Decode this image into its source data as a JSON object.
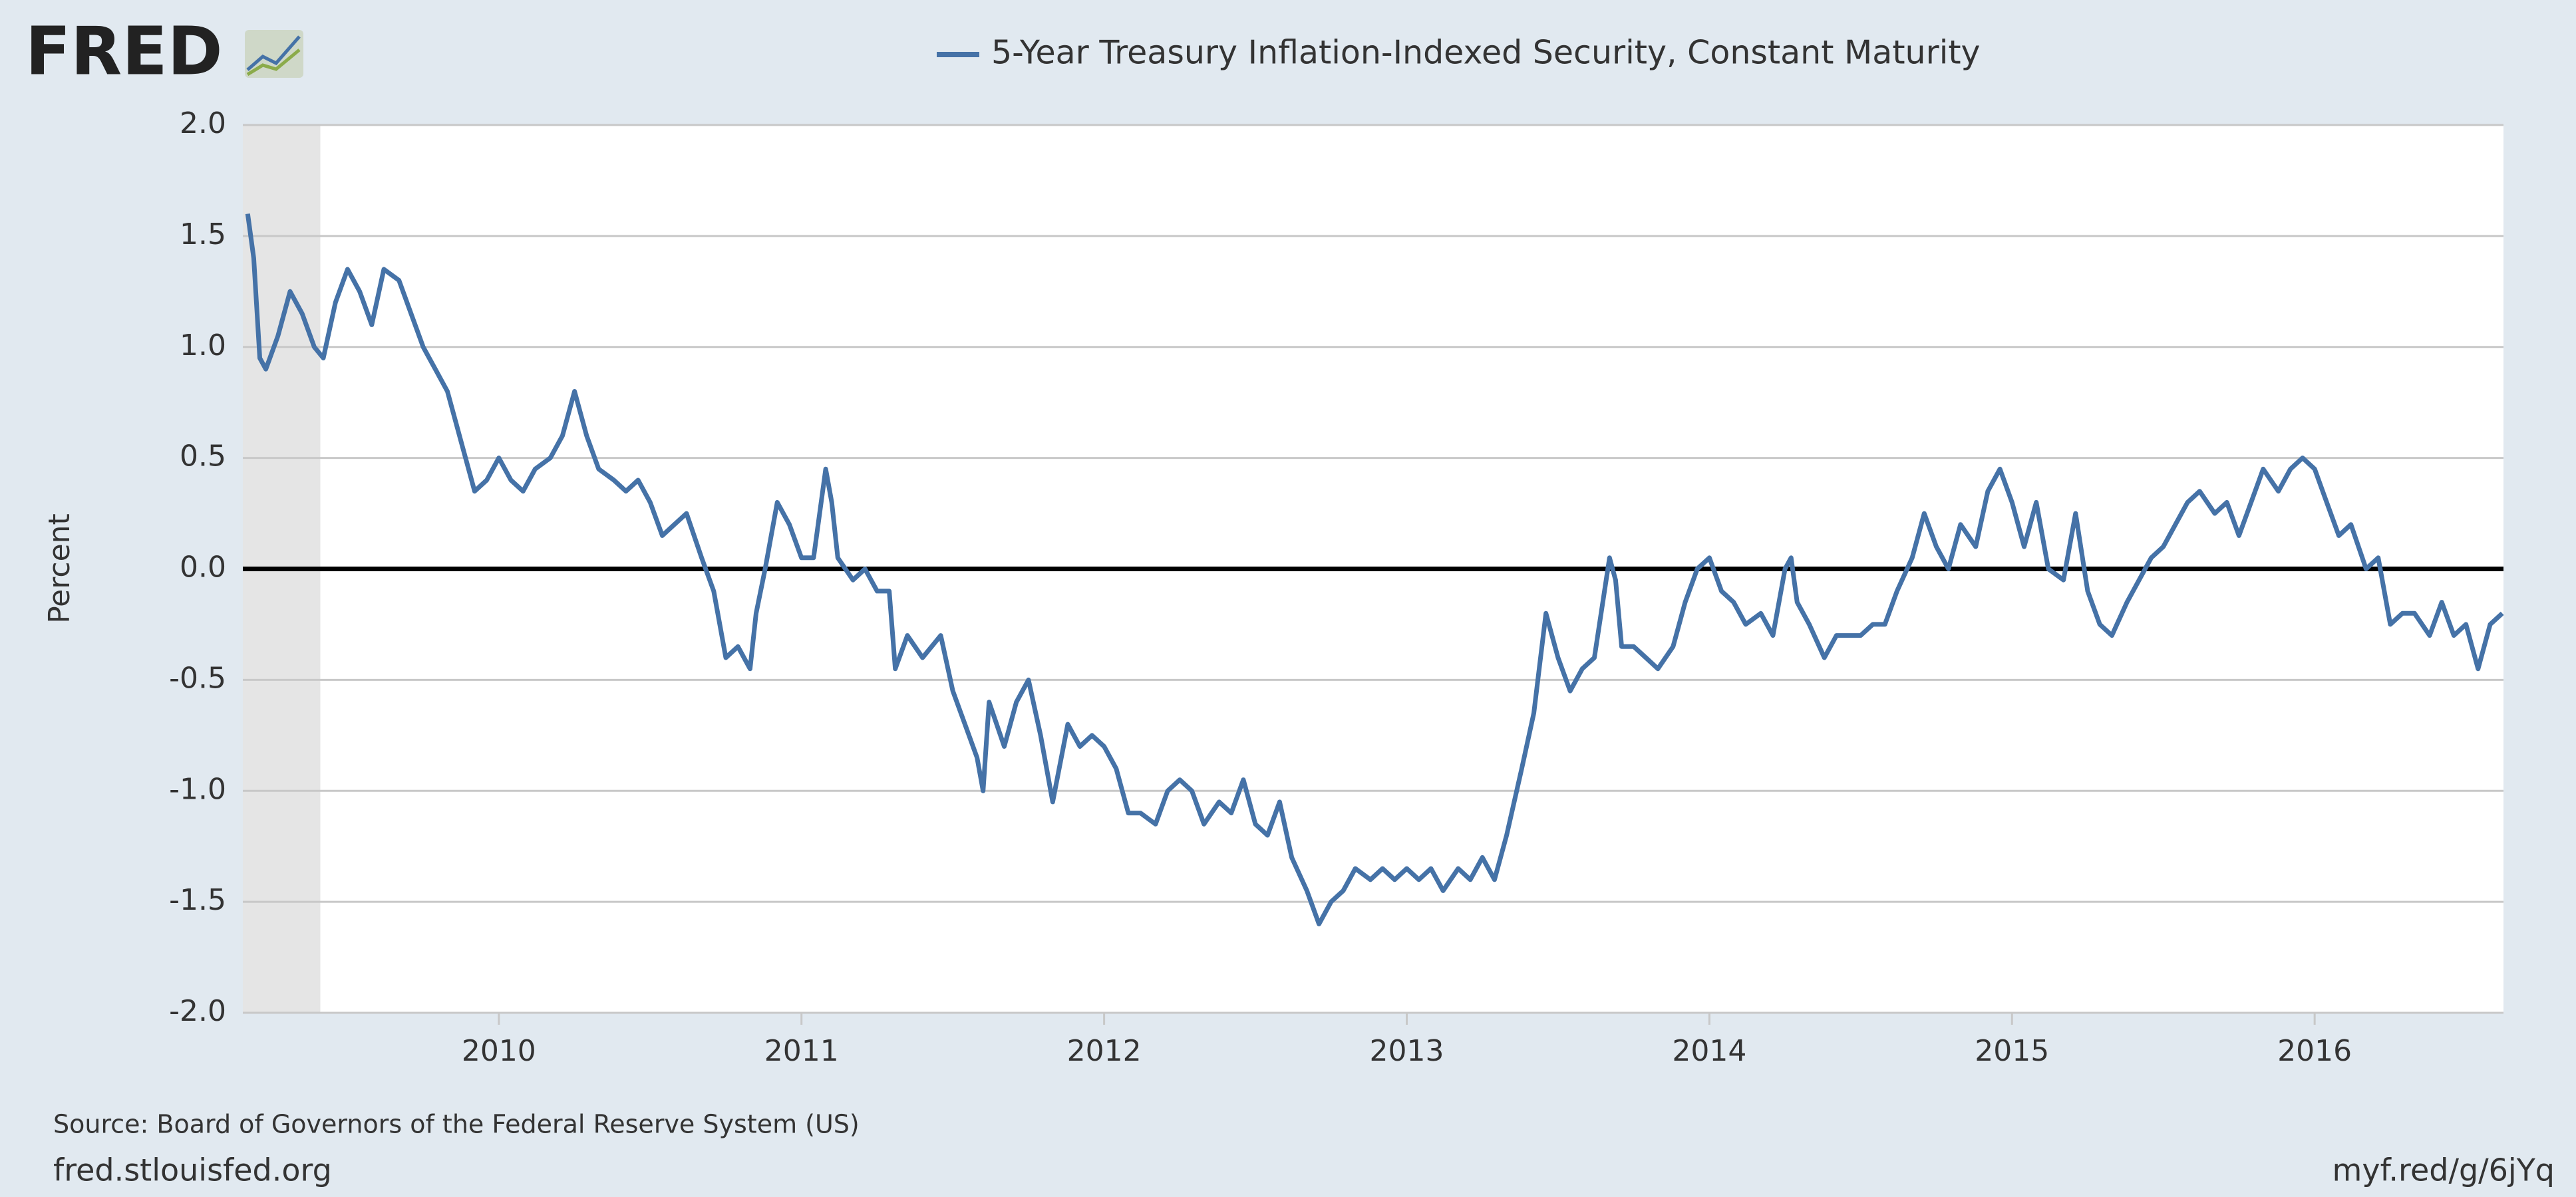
{
  "chart_data": {
    "type": "line",
    "logo": "FRED",
    "y_label": "Percent",
    "source": "Source: Board of Governors of the Federal Reserve System (US)",
    "site": "fred.stlouisfed.org",
    "short_url": "myf.red/g/6jYq",
    "x": [
      2009.17,
      2009.19,
      2009.21,
      2009.23,
      2009.27,
      2009.31,
      2009.35,
      2009.39,
      2009.42,
      2009.46,
      2009.5,
      2009.54,
      2009.58,
      2009.62,
      2009.67,
      2009.71,
      2009.75,
      2009.79,
      2009.83,
      2009.88,
      2009.92,
      2009.96,
      2010.0,
      2010.04,
      2010.08,
      2010.12,
      2010.17,
      2010.21,
      2010.25,
      2010.29,
      2010.33,
      2010.38,
      2010.42,
      2010.46,
      2010.5,
      2010.54,
      2010.58,
      2010.62,
      2010.67,
      2010.71,
      2010.75,
      2010.79,
      2010.83,
      2010.85,
      2010.88,
      2010.92,
      2010.96,
      2011.0,
      2011.04,
      2011.08,
      2011.1,
      2011.12,
      2011.17,
      2011.21,
      2011.25,
      2011.29,
      2011.31,
      2011.35,
      2011.4,
      2011.46,
      2011.5,
      2011.54,
      2011.58,
      2011.6,
      2011.62,
      2011.67,
      2011.71,
      2011.75,
      2011.79,
      2011.83,
      2011.88,
      2011.92,
      2011.96,
      2012.0,
      2012.04,
      2012.08,
      2012.12,
      2012.17,
      2012.21,
      2012.25,
      2012.29,
      2012.33,
      2012.38,
      2012.42,
      2012.46,
      2012.5,
      2012.54,
      2012.58,
      2012.62,
      2012.67,
      2012.71,
      2012.75,
      2012.79,
      2012.83,
      2012.88,
      2012.92,
      2012.96,
      2013.0,
      2013.04,
      2013.08,
      2013.12,
      2013.17,
      2013.21,
      2013.25,
      2013.29,
      2013.33,
      2013.38,
      2013.42,
      2013.46,
      2013.5,
      2013.54,
      2013.58,
      2013.62,
      2013.67,
      2013.69,
      2013.71,
      2013.75,
      2013.79,
      2013.83,
      2013.88,
      2013.92,
      2013.96,
      2014.0,
      2014.04,
      2014.08,
      2014.12,
      2014.17,
      2014.21,
      2014.25,
      2014.27,
      2014.29,
      2014.33,
      2014.38,
      2014.42,
      2014.46,
      2014.5,
      2014.54,
      2014.58,
      2014.62,
      2014.67,
      2014.71,
      2014.75,
      2014.79,
      2014.83,
      2014.88,
      2014.92,
      2014.96,
      2015.0,
      2015.04,
      2015.08,
      2015.12,
      2015.17,
      2015.21,
      2015.25,
      2015.29,
      2015.33,
      2015.38,
      2015.42,
      2015.46,
      2015.5,
      2015.54,
      2015.58,
      2015.62,
      2015.67,
      2015.71,
      2015.75,
      2015.79,
      2015.83,
      2015.88,
      2015.92,
      2015.96,
      2016.0,
      2016.04,
      2016.08,
      2016.12,
      2016.17,
      2016.21,
      2016.25,
      2016.29,
      2016.33,
      2016.38,
      2016.42,
      2016.46,
      2016.5,
      2016.54,
      2016.58,
      2016.62
    ],
    "series": [
      {
        "name": "5-Year Treasury Inflation-Indexed Security, Constant Maturity",
        "color": "#4572a7",
        "values": [
          1.6,
          1.4,
          0.95,
          0.9,
          1.05,
          1.25,
          1.15,
          1.0,
          0.95,
          1.2,
          1.35,
          1.25,
          1.1,
          1.35,
          1.3,
          1.15,
          1.0,
          0.9,
          0.8,
          0.55,
          0.35,
          0.4,
          0.5,
          0.4,
          0.35,
          0.45,
          0.5,
          0.6,
          0.8,
          0.6,
          0.45,
          0.4,
          0.35,
          0.4,
          0.3,
          0.15,
          0.2,
          0.25,
          0.05,
          -0.1,
          -0.4,
          -0.35,
          -0.45,
          -0.2,
          0.0,
          0.3,
          0.2,
          0.05,
          0.05,
          0.45,
          0.3,
          0.05,
          -0.05,
          0.0,
          -0.1,
          -0.1,
          -0.45,
          -0.3,
          -0.4,
          -0.3,
          -0.55,
          -0.7,
          -0.85,
          -1.0,
          -0.6,
          -0.8,
          -0.6,
          -0.5,
          -0.75,
          -1.05,
          -0.7,
          -0.8,
          -0.75,
          -0.8,
          -0.9,
          -1.1,
          -1.1,
          -1.15,
          -1.0,
          -0.95,
          -1.0,
          -1.15,
          -1.05,
          -1.1,
          -0.95,
          -1.15,
          -1.2,
          -1.05,
          -1.3,
          -1.45,
          -1.6,
          -1.5,
          -1.45,
          -1.35,
          -1.4,
          -1.35,
          -1.4,
          -1.35,
          -1.4,
          -1.35,
          -1.45,
          -1.35,
          -1.4,
          -1.3,
          -1.4,
          -1.2,
          -0.9,
          -0.65,
          -0.2,
          -0.4,
          -0.55,
          -0.45,
          -0.4,
          0.05,
          -0.05,
          -0.35,
          -0.35,
          -0.4,
          -0.45,
          -0.35,
          -0.15,
          0.0,
          0.05,
          -0.1,
          -0.15,
          -0.25,
          -0.2,
          -0.3,
          0.0,
          0.05,
          -0.15,
          -0.25,
          -0.4,
          -0.3,
          -0.3,
          -0.3,
          -0.25,
          -0.25,
          -0.1,
          0.05,
          0.25,
          0.1,
          0.0,
          0.2,
          0.1,
          0.35,
          0.45,
          0.3,
          0.1,
          0.3,
          0.0,
          -0.05,
          0.25,
          -0.1,
          -0.25,
          -0.3,
          -0.15,
          -0.05,
          0.05,
          0.1,
          0.2,
          0.3,
          0.35,
          0.25,
          0.3,
          0.15,
          0.3,
          0.45,
          0.35,
          0.45,
          0.5,
          0.45,
          0.3,
          0.15,
          0.2,
          0.0,
          0.05,
          -0.25,
          -0.2,
          -0.2,
          -0.3,
          -0.15,
          -0.3,
          -0.25,
          -0.45,
          -0.25,
          -0.2
        ]
      }
    ],
    "xlim": [
      2009.154,
      2016.624
    ],
    "xticks": [
      2010,
      2011,
      2012,
      2013,
      2014,
      2015,
      2016
    ],
    "ylim": [
      -2,
      2
    ],
    "yticks": [
      {
        "value": -2,
        "label": "-2.0"
      },
      {
        "value": -1.5,
        "label": "-1.5"
      },
      {
        "value": -1,
        "label": "-1.0"
      },
      {
        "value": -0.5,
        "label": "-0.5"
      },
      {
        "value": 0,
        "label": "0.0"
      },
      {
        "value": 0.5,
        "label": "0.5"
      },
      {
        "value": 1,
        "label": "1.0"
      },
      {
        "value": 1.5,
        "label": "1.5"
      },
      {
        "value": 2,
        "label": "2.0"
      }
    ],
    "reference_line": 0,
    "shaded_periods": [
      [
        2009.154,
        2009.41
      ]
    ],
    "grid": true
  }
}
